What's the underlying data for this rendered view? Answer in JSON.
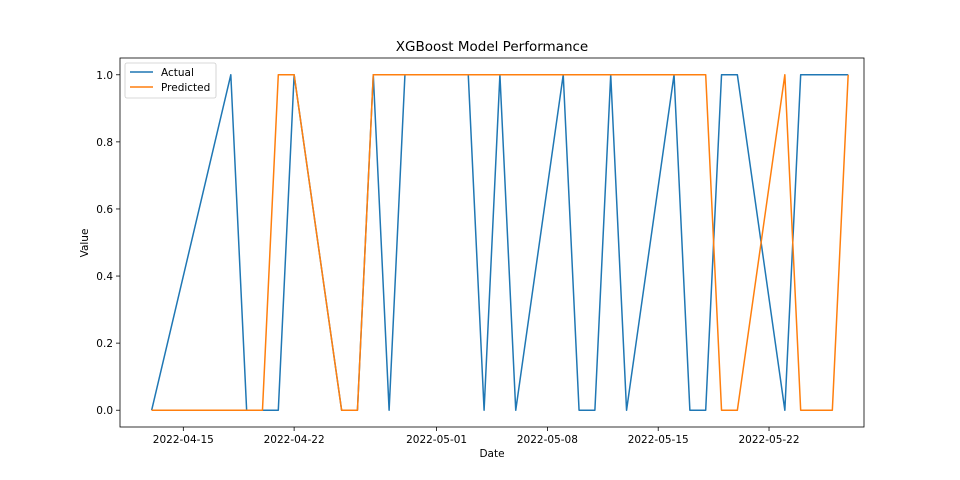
{
  "chart_data": {
    "type": "line",
    "title": "XGBoost Model Performance",
    "xlabel": "Date",
    "ylabel": "Value",
    "x_axis_type": "date",
    "xlim": [
      "2022-04-11",
      "2022-05-28"
    ],
    "ylim": [
      -0.05,
      1.05
    ],
    "x_ticks": [
      "2022-04-15",
      "2022-04-22",
      "2022-05-01",
      "2022-05-08",
      "2022-05-15",
      "2022-05-22"
    ],
    "y_ticks": [
      "0.0",
      "0.2",
      "0.4",
      "0.6",
      "0.8",
      "1.0"
    ],
    "grid": false,
    "legend_position": "top-left",
    "series": [
      {
        "name": "Actual",
        "color": "#1f77b4",
        "points": [
          [
            "2022-04-13",
            0
          ],
          [
            "2022-04-18",
            1
          ],
          [
            "2022-04-19",
            0
          ],
          [
            "2022-04-20",
            0
          ],
          [
            "2022-04-21",
            0
          ],
          [
            "2022-04-22",
            1
          ],
          [
            "2022-04-25",
            0
          ],
          [
            "2022-04-26",
            0
          ],
          [
            "2022-04-27",
            1
          ],
          [
            "2022-04-28",
            0
          ],
          [
            "2022-04-29",
            1
          ],
          [
            "2022-05-03",
            1
          ],
          [
            "2022-05-04",
            0
          ],
          [
            "2022-05-05",
            1
          ],
          [
            "2022-05-06",
            0
          ],
          [
            "2022-05-09",
            1
          ],
          [
            "2022-05-10",
            0
          ],
          [
            "2022-05-11",
            0
          ],
          [
            "2022-05-12",
            1
          ],
          [
            "2022-05-13",
            0
          ],
          [
            "2022-05-16",
            1
          ],
          [
            "2022-05-17",
            0
          ],
          [
            "2022-05-18",
            0
          ],
          [
            "2022-05-19",
            1
          ],
          [
            "2022-05-20",
            1
          ],
          [
            "2022-05-23",
            0
          ],
          [
            "2022-05-24",
            1
          ],
          [
            "2022-05-25",
            1
          ],
          [
            "2022-05-26",
            1
          ],
          [
            "2022-05-27",
            1
          ]
        ]
      },
      {
        "name": "Predicted",
        "color": "#ff7f0e",
        "points": [
          [
            "2022-04-13",
            0
          ],
          [
            "2022-04-18",
            0
          ],
          [
            "2022-04-19",
            0
          ],
          [
            "2022-04-20",
            0
          ],
          [
            "2022-04-21",
            1
          ],
          [
            "2022-04-22",
            1
          ],
          [
            "2022-04-25",
            0
          ],
          [
            "2022-04-26",
            0
          ],
          [
            "2022-04-27",
            1
          ],
          [
            "2022-04-28",
            1
          ],
          [
            "2022-04-29",
            1
          ],
          [
            "2022-05-03",
            1
          ],
          [
            "2022-05-04",
            1
          ],
          [
            "2022-05-05",
            1
          ],
          [
            "2022-05-06",
            1
          ],
          [
            "2022-05-09",
            1
          ],
          [
            "2022-05-10",
            1
          ],
          [
            "2022-05-11",
            1
          ],
          [
            "2022-05-12",
            1
          ],
          [
            "2022-05-13",
            1
          ],
          [
            "2022-05-16",
            1
          ],
          [
            "2022-05-17",
            1
          ],
          [
            "2022-05-18",
            1
          ],
          [
            "2022-05-19",
            0
          ],
          [
            "2022-05-20",
            0
          ],
          [
            "2022-05-23",
            1
          ],
          [
            "2022-05-24",
            0
          ],
          [
            "2022-05-25",
            0
          ],
          [
            "2022-05-26",
            0
          ],
          [
            "2022-05-27",
            1
          ]
        ]
      }
    ]
  }
}
